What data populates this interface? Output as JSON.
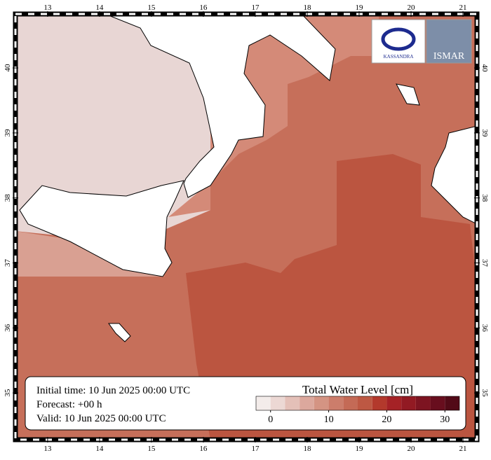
{
  "map": {
    "xlim": [
      12.38,
      21.27
    ],
    "ylim": [
      34.28,
      40.83
    ],
    "lon_ticks": [
      13,
      14,
      15,
      16,
      17,
      18,
      19,
      20,
      21
    ],
    "lat_ticks": [
      35,
      36,
      37,
      38,
      39,
      40
    ]
  },
  "info": {
    "initial_time": "Initial time: 10 Jun 2025 00:00 UTC",
    "forecast": "Forecast: +00 h",
    "valid": "Valid: 10 Jun 2025 00:00 UTC"
  },
  "colorbar": {
    "title": "Total Water Level [cm]",
    "lim": [
      -2.5,
      32.5
    ],
    "ticks": [
      0,
      10,
      20,
      30
    ],
    "colors": [
      "#f3ecea",
      "#ecd8d4",
      "#e4c0b8",
      "#dca89d",
      "#d49483",
      "#cc7d6b",
      "#c46a56",
      "#bd5843",
      "#b3392c",
      "#a52226",
      "#921a23",
      "#7d1421",
      "#680e1e",
      "#520a17"
    ]
  },
  "logos": {
    "left": "KASSANDRA",
    "right": "ISMAR"
  }
}
